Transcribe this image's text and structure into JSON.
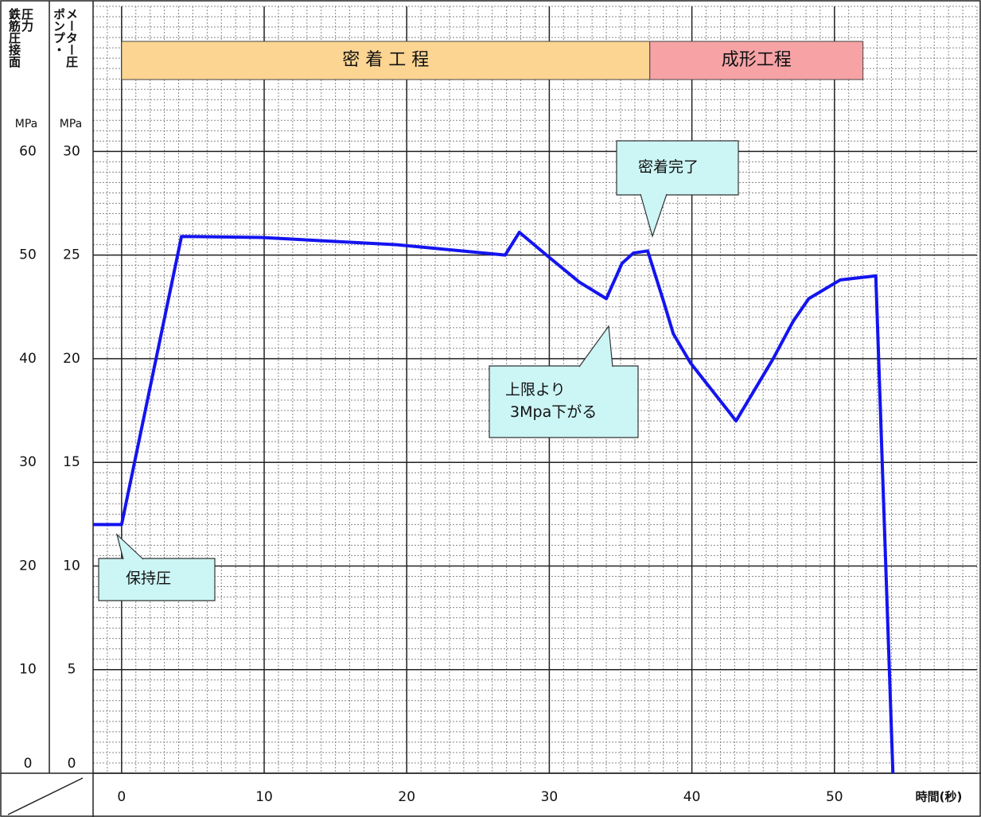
{
  "chart_data": {
    "type": "line",
    "y2label": "鉄筋圧接面\n圧力",
    "ylabel": "ポンプ・\nメーター圧",
    "y2unit": "MPa",
    "yunit": "MPa",
    "xlabel": "時間(秒)",
    "xlim": [
      -2,
      60
    ],
    "xticks": [
      0,
      10,
      20,
      30,
      40,
      50
    ],
    "ylim": [
      0,
      37
    ],
    "yticks": [
      0,
      5,
      10,
      15,
      20,
      25,
      30
    ],
    "y2lim": [
      0,
      74
    ],
    "y2ticks": [
      0,
      10,
      20,
      30,
      40,
      50,
      60
    ],
    "grid": true,
    "minor_grid": {
      "x": 1,
      "y": 0.5
    },
    "bands": [
      {
        "label": "密 着 工 程",
        "start": 0,
        "end": 37.05,
        "color": "#fcd592"
      },
      {
        "label": "成形工程",
        "start": 37.05,
        "end": 52,
        "color": "#f7a3a6"
      }
    ],
    "annotations": [
      "密着完了",
      "上限より\n 3Mpa下がる",
      "保持圧"
    ],
    "series": [
      {
        "name": "ポンプ・メーター圧",
        "color": "#1414f0",
        "x": [
          -2,
          0,
          4.2,
          9.8,
          19.3,
          26.9,
          27.9,
          29.8,
          32.1,
          34.0,
          35.1,
          35.9,
          36.9,
          38.0,
          38.7,
          39.9,
          43.1,
          45.7,
          47.1,
          48.2,
          50.4,
          52.9,
          54.1
        ],
        "values": [
          12.0,
          12.0,
          25.9,
          25.85,
          25.5,
          25.0,
          26.1,
          25.0,
          23.7,
          22.9,
          24.6,
          25.1,
          25.2,
          22.8,
          21.2,
          19.8,
          17.0,
          20.0,
          21.8,
          22.9,
          23.8,
          24.0,
          0
        ]
      }
    ]
  }
}
